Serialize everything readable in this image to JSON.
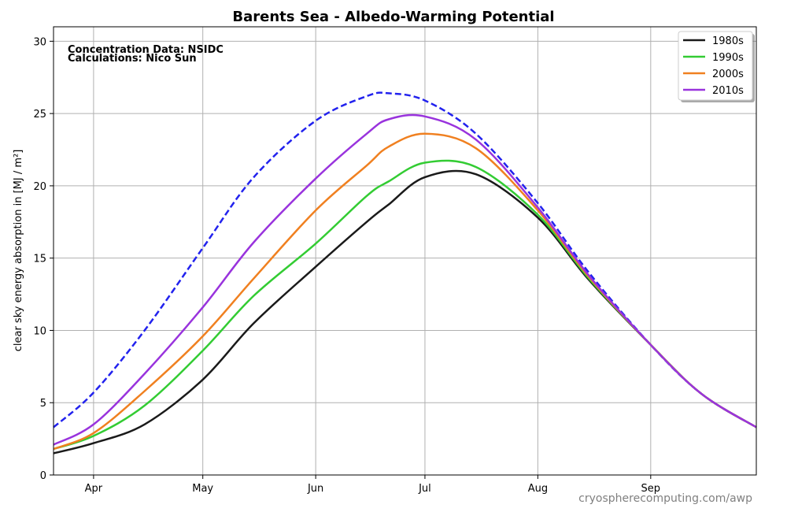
{
  "chart_data": {
    "type": "line",
    "title": "Barents Sea - Albedo-Warming Potential",
    "ylabel": "clear sky energy absorption in  [MJ / m²]",
    "xlabel": "",
    "ylim": [
      0,
      31
    ],
    "xlim": [
      "Mar 21",
      "Sep 30"
    ],
    "x_ticks": [
      {
        "label": "Apr",
        "date": "Apr 1"
      },
      {
        "label": "May",
        "date": "May 1"
      },
      {
        "label": "Jun",
        "date": "Jun 1"
      },
      {
        "label": "Jul",
        "date": "Jul 1"
      },
      {
        "label": "Aug",
        "date": "Aug 1"
      },
      {
        "label": "Sep",
        "date": "Sep 1"
      }
    ],
    "y_ticks": [
      0,
      5,
      10,
      15,
      20,
      25,
      30
    ],
    "grid": true,
    "legend_position": "top-right",
    "x": [
      "Mar 21",
      "Apr 1",
      "Apr 15",
      "May 1",
      "May 15",
      "Jun 1",
      "Jun 15",
      "Jun 21",
      "Jul 1",
      "Jul 15",
      "Aug 1",
      "Aug 15",
      "Sep 1",
      "Sep 15",
      "Sep 30"
    ],
    "reference_series": {
      "style": "dashed",
      "color": "#2222ee",
      "values": [
        3.3,
        5.7,
        10.0,
        15.7,
        20.6,
        24.5,
        26.2,
        26.4,
        25.9,
        23.6,
        18.8,
        14.0,
        9.0,
        5.6,
        3.3
      ]
    },
    "series": [
      {
        "name": "1980s",
        "color": "#1a1a1a",
        "values": [
          1.5,
          2.2,
          3.5,
          6.6,
          10.5,
          14.4,
          17.5,
          18.7,
          20.6,
          20.8,
          17.8,
          13.5,
          9.0,
          5.6,
          3.3
        ]
      },
      {
        "name": "1990s",
        "color": "#33cc33",
        "values": [
          1.8,
          2.7,
          4.8,
          8.6,
          12.4,
          16.0,
          19.3,
          20.3,
          21.6,
          21.3,
          18.0,
          13.6,
          9.0,
          5.6,
          3.3
        ]
      },
      {
        "name": "2000s",
        "color": "#f08020",
        "values": [
          1.8,
          2.9,
          5.8,
          9.6,
          13.6,
          18.3,
          21.4,
          22.7,
          23.6,
          22.6,
          18.3,
          13.7,
          9.0,
          5.6,
          3.3
        ]
      },
      {
        "name": "2010s",
        "color": "#9933dd",
        "values": [
          2.1,
          3.5,
          7.0,
          11.6,
          16.1,
          20.5,
          23.6,
          24.6,
          24.8,
          23.2,
          18.5,
          13.8,
          9.0,
          5.6,
          3.3
        ]
      }
    ],
    "annotations": [
      "Concentration Data: NSIDC",
      "Calculations: Nico Sun"
    ],
    "watermark": "cryospherecomputing.com/awp"
  }
}
